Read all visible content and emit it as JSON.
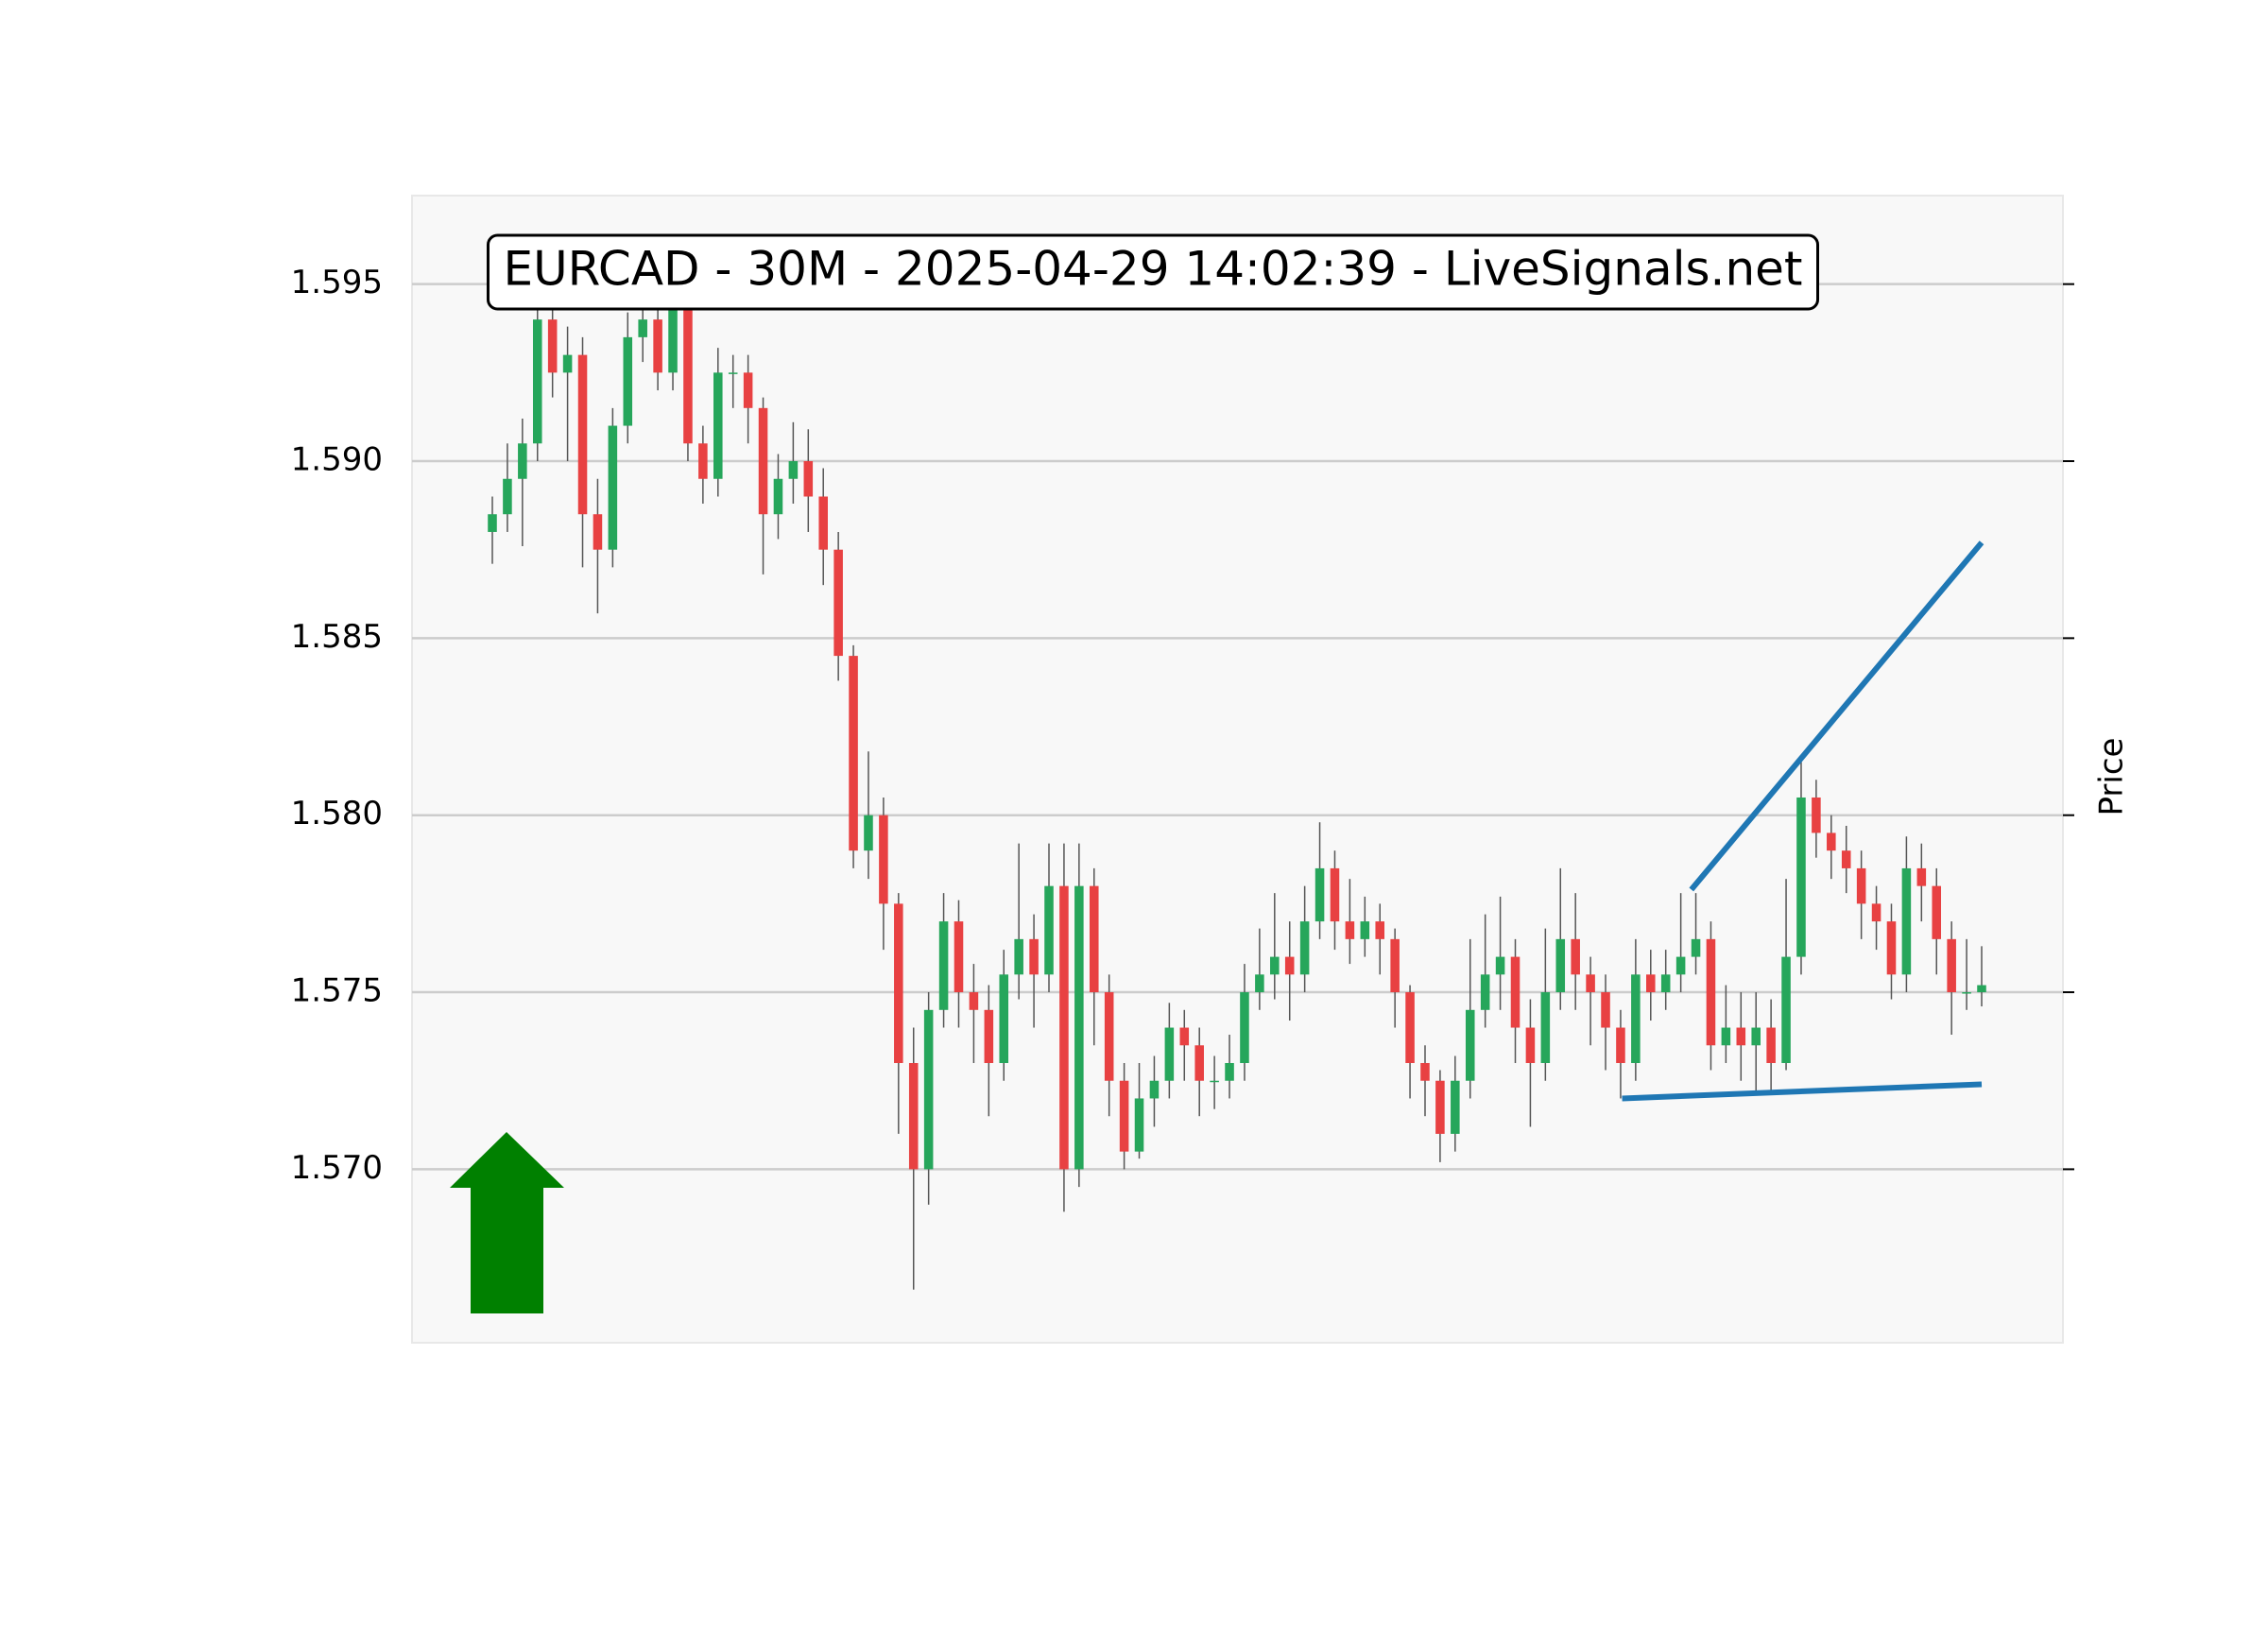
{
  "chart_data": {
    "type": "candlestick",
    "title": "EURCAD - 30M - 2025-04-29 14:02:39 - LiveSignals.net",
    "ylabel": "Price",
    "up_color": "#26a65b",
    "down_color": "#e84142",
    "wick_color": "#555555",
    "open": [
      1.588,
      1.5885,
      1.5895,
      1.5905,
      1.594,
      1.5925,
      1.593,
      1.5885,
      1.5875,
      1.591,
      1.5935,
      1.594,
      1.5925,
      1.5945,
      1.5905,
      1.5895,
      1.5925,
      1.5925,
      1.5915,
      1.5885,
      1.5895,
      1.59,
      1.589,
      1.5875,
      1.5845,
      1.579,
      1.58,
      1.5775,
      1.573,
      1.57,
      1.5745,
      1.577,
      1.575,
      1.5745,
      1.573,
      1.5755,
      1.5765,
      1.5755,
      1.578,
      1.57,
      1.578,
      1.575,
      1.5725,
      1.5705,
      1.572,
      1.5725,
      1.574,
      1.5735,
      1.5725,
      1.5725,
      1.573,
      1.575,
      1.5755,
      1.576,
      1.5755,
      1.577,
      1.5785,
      1.577,
      1.5765,
      1.577,
      1.5765,
      1.575,
      1.573,
      1.5725,
      1.571,
      1.5725,
      1.5745,
      1.5755,
      1.576,
      1.574,
      1.573,
      1.575,
      1.5765,
      1.5755,
      1.575,
      1.574,
      1.573,
      1.5755,
      1.575,
      1.5755,
      1.576,
      1.5765,
      1.5735,
      1.574,
      1.5735,
      1.574,
      1.573,
      1.576,
      1.5805,
      1.5795,
      1.579,
      1.5785,
      1.5775,
      1.577,
      1.5755,
      1.5785,
      1.578,
      1.5765,
      1.575,
      1.575
    ],
    "high": [
      1.589,
      1.5905,
      1.5912,
      1.5952,
      1.5948,
      1.5938,
      1.5935,
      1.5895,
      1.5915,
      1.5942,
      1.5952,
      1.5945,
      1.5958,
      1.595,
      1.591,
      1.5932,
      1.593,
      1.593,
      1.5918,
      1.5902,
      1.5911,
      1.5909,
      1.5898,
      1.588,
      1.5848,
      1.5818,
      1.5805,
      1.5778,
      1.574,
      1.575,
      1.5778,
      1.5776,
      1.5758,
      1.5752,
      1.5762,
      1.5792,
      1.5772,
      1.5792,
      1.5792,
      1.5792,
      1.5785,
      1.5755,
      1.573,
      1.573,
      1.5732,
      1.5747,
      1.5745,
      1.574,
      1.5732,
      1.5738,
      1.5758,
      1.5768,
      1.5778,
      1.577,
      1.578,
      1.5798,
      1.579,
      1.5782,
      1.5777,
      1.5775,
      1.5768,
      1.5752,
      1.5735,
      1.5728,
      1.5732,
      1.5765,
      1.5772,
      1.5777,
      1.5765,
      1.5748,
      1.5768,
      1.5785,
      1.5778,
      1.576,
      1.5755,
      1.5745,
      1.5765,
      1.5762,
      1.5762,
      1.5778,
      1.5778,
      1.577,
      1.5752,
      1.575,
      1.575,
      1.5748,
      1.5782,
      1.5815,
      1.581,
      1.58,
      1.5797,
      1.579,
      1.578,
      1.5775,
      1.5794,
      1.5792,
      1.5785,
      1.577,
      1.5765,
      1.5763
    ],
    "low": [
      1.5871,
      1.588,
      1.5876,
      1.59,
      1.5918,
      1.59,
      1.587,
      1.5857,
      1.587,
      1.5905,
      1.5928,
      1.592,
      1.592,
      1.59,
      1.5888,
      1.589,
      1.5915,
      1.5905,
      1.5868,
      1.5878,
      1.5888,
      1.588,
      1.5865,
      1.5838,
      1.5785,
      1.5782,
      1.5762,
      1.571,
      1.5666,
      1.569,
      1.574,
      1.574,
      1.573,
      1.5715,
      1.5725,
      1.5748,
      1.574,
      1.575,
      1.5688,
      1.5695,
      1.5735,
      1.5715,
      1.57,
      1.5703,
      1.5712,
      1.572,
      1.5725,
      1.5715,
      1.5717,
      1.572,
      1.5725,
      1.5745,
      1.5748,
      1.5742,
      1.575,
      1.5765,
      1.5762,
      1.5758,
      1.576,
      1.5755,
      1.574,
      1.572,
      1.5715,
      1.5702,
      1.5705,
      1.572,
      1.574,
      1.5745,
      1.573,
      1.5712,
      1.5725,
      1.5745,
      1.5745,
      1.5735,
      1.5728,
      1.572,
      1.5725,
      1.5742,
      1.5745,
      1.575,
      1.5755,
      1.5728,
      1.573,
      1.5725,
      1.5722,
      1.5722,
      1.5728,
      1.5755,
      1.5788,
      1.5782,
      1.5778,
      1.5765,
      1.5762,
      1.5748,
      1.575,
      1.577,
      1.5755,
      1.5738,
      1.5745,
      1.5746
    ],
    "close": [
      1.5885,
      1.5895,
      1.5905,
      1.594,
      1.5925,
      1.593,
      1.5885,
      1.5875,
      1.591,
      1.5935,
      1.594,
      1.5925,
      1.5945,
      1.5905,
      1.5895,
      1.5925,
      1.5925,
      1.5915,
      1.5885,
      1.5895,
      1.59,
      1.589,
      1.5875,
      1.5845,
      1.579,
      1.58,
      1.5775,
      1.573,
      1.57,
      1.5745,
      1.577,
      1.575,
      1.5745,
      1.573,
      1.5755,
      1.5765,
      1.5755,
      1.578,
      1.57,
      1.578,
      1.575,
      1.5725,
      1.5705,
      1.572,
      1.5725,
      1.574,
      1.5735,
      1.5725,
      1.5725,
      1.573,
      1.575,
      1.5755,
      1.576,
      1.5755,
      1.577,
      1.5785,
      1.577,
      1.5765,
      1.577,
      1.5765,
      1.575,
      1.573,
      1.5725,
      1.571,
      1.5725,
      1.5745,
      1.5755,
      1.576,
      1.574,
      1.573,
      1.575,
      1.5765,
      1.5755,
      1.575,
      1.574,
      1.573,
      1.5755,
      1.575,
      1.5755,
      1.576,
      1.5765,
      1.5735,
      1.574,
      1.5735,
      1.574,
      1.573,
      1.576,
      1.5805,
      1.5795,
      1.579,
      1.5785,
      1.5775,
      1.577,
      1.5755,
      1.5785,
      1.578,
      1.5765,
      1.575,
      1.575,
      1.5752
    ],
    "trendlines": [
      {
        "x": [
          79.7,
          99
        ],
        "y": [
          1.5779,
          1.5877
        ],
        "color": "#1f77b4"
      },
      {
        "x": [
          75.1,
          99
        ],
        "y": [
          1.572,
          1.5724
        ],
        "color": "#1f77b4"
      }
    ],
    "ylim": [
      1.5651,
      1.5975
    ],
    "yticks": [
      {
        "value": 1.57,
        "label": "1.570"
      },
      1.575,
      {
        "value": 1.58,
        "label": "1.580"
      },
      1.585,
      {
        "value": 1.59,
        "label": "1.590"
      },
      1.595
    ],
    "grid": true
  }
}
